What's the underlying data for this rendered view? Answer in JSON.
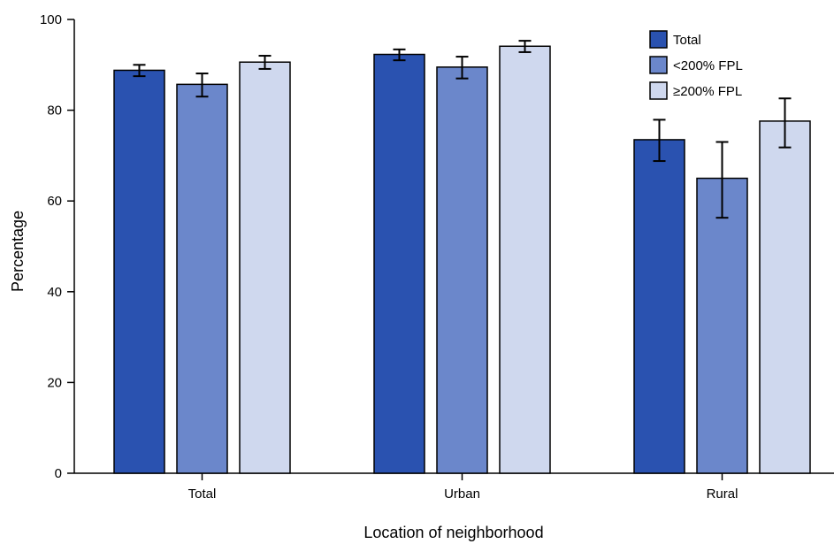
{
  "chart_data": {
    "type": "bar",
    "categories": [
      "Total",
      "Urban",
      "Rural"
    ],
    "series": [
      {
        "name": "Total",
        "color": "#2a52b0",
        "values": [
          88.8,
          92.3,
          73.5
        ],
        "error_low": [
          87.5,
          91.0,
          68.8
        ],
        "error_high": [
          90.0,
          93.4,
          77.9
        ]
      },
      {
        "name": "<200% FPL",
        "color": "#6b87cb",
        "values": [
          85.7,
          89.5,
          65.0
        ],
        "error_low": [
          83.0,
          87.0,
          56.3
        ],
        "error_high": [
          88.1,
          91.8,
          73.0
        ]
      },
      {
        "name": "≥200% FPL",
        "color": "#cfd8ee",
        "values": [
          90.6,
          94.1,
          77.6
        ],
        "error_low": [
          89.1,
          92.8,
          71.8
        ],
        "error_high": [
          92.0,
          95.3,
          82.6
        ]
      }
    ],
    "xlabel": "Location of neighborhood",
    "ylabel": "Percentage",
    "ylim": [
      0,
      100
    ],
    "yticks": [
      0,
      20,
      40,
      60,
      80,
      100
    ],
    "grid": false,
    "legend_position": "top-right"
  }
}
